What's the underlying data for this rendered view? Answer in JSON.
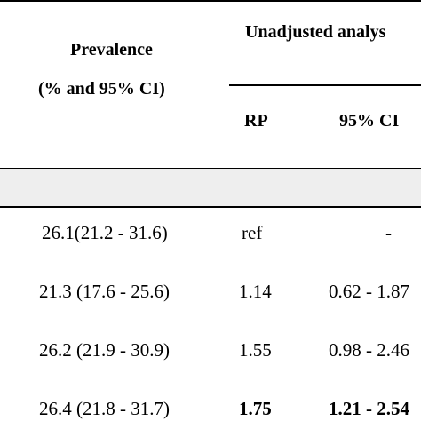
{
  "header": {
    "prevalence_line1": "Prevalence",
    "prevalence_line2": "(% and 95% CI)",
    "group_title": "Unadjusted analys",
    "rp_label": "RP",
    "ci_label": "95% CI"
  },
  "rows": [
    {
      "prevalence": "26.1(21.2 - 31.6)",
      "rp": "ref",
      "ci": "-",
      "bold": false
    },
    {
      "prevalence": "21.3 (17.6 - 25.6)",
      "rp": "1.14",
      "ci": "0.62 - 1.87",
      "bold": false
    },
    {
      "prevalence": "26.2 (21.9 - 30.9)",
      "rp": "1.55",
      "ci": "0.98 - 2.46",
      "bold": false
    },
    {
      "prevalence": "26.4 (21.8 - 31.7)",
      "rp": "1.75",
      "ci": "1.21 - 2.54",
      "bold": true
    }
  ]
}
